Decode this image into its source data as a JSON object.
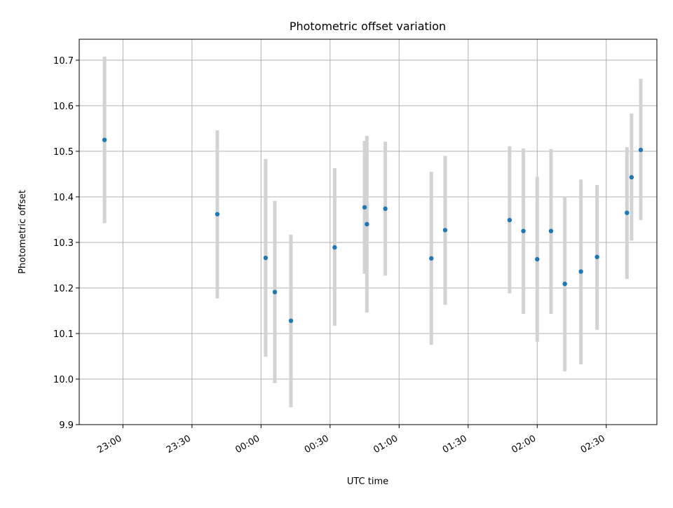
{
  "chart_data": {
    "type": "scatter",
    "title": "Photometric offset variation",
    "xlabel": "UTC time",
    "ylabel": "Photometric offset",
    "ylim": [
      9.9,
      10.746
    ],
    "xlim": [
      "22:41",
      "02:52"
    ],
    "grid": true,
    "x_ticks": [
      "23:00",
      "23:30",
      "00:00",
      "00:30",
      "01:00",
      "01:30",
      "02:00",
      "02:30"
    ],
    "y_ticks": [
      "9.9",
      "10.0",
      "10.1",
      "10.2",
      "10.3",
      "10.4",
      "10.5",
      "10.6",
      "10.7"
    ],
    "series": [
      {
        "marker_color": "#1f77b4",
        "errorbar_color": "#d3d3d3",
        "points": [
          {
            "x": "22:52",
            "y": 10.525,
            "ylow": 10.342,
            "yhigh": 10.708
          },
          {
            "x": "23:41",
            "y": 10.362,
            "ylow": 10.177,
            "yhigh": 10.546
          },
          {
            "x": "00:02",
            "y": 10.266,
            "ylow": 10.049,
            "yhigh": 10.483
          },
          {
            "x": "00:06",
            "y": 10.191,
            "ylow": 9.991,
            "yhigh": 10.391
          },
          {
            "x": "00:13",
            "y": 10.128,
            "ylow": 9.938,
            "yhigh": 10.317
          },
          {
            "x": "00:32",
            "y": 10.289,
            "ylow": 10.117,
            "yhigh": 10.463
          },
          {
            "x": "00:45",
            "y": 10.377,
            "ylow": 10.231,
            "yhigh": 10.523
          },
          {
            "x": "00:46",
            "y": 10.34,
            "ylow": 10.146,
            "yhigh": 10.534
          },
          {
            "x": "00:54",
            "y": 10.374,
            "ylow": 10.227,
            "yhigh": 10.521
          },
          {
            "x": "01:14",
            "y": 10.265,
            "ylow": 10.075,
            "yhigh": 10.455
          },
          {
            "x": "01:20",
            "y": 10.327,
            "ylow": 10.163,
            "yhigh": 10.49
          },
          {
            "x": "01:48",
            "y": 10.349,
            "ylow": 10.188,
            "yhigh": 10.511
          },
          {
            "x": "01:54",
            "y": 10.325,
            "ylow": 10.143,
            "yhigh": 10.506
          },
          {
            "x": "02:00",
            "y": 10.263,
            "ylow": 10.082,
            "yhigh": 10.444
          },
          {
            "x": "02:06",
            "y": 10.325,
            "ylow": 10.143,
            "yhigh": 10.505
          },
          {
            "x": "02:12",
            "y": 10.209,
            "ylow": 10.017,
            "yhigh": 10.401
          },
          {
            "x": "02:19",
            "y": 10.236,
            "ylow": 10.032,
            "yhigh": 10.438
          },
          {
            "x": "02:26",
            "y": 10.268,
            "ylow": 10.108,
            "yhigh": 10.426
          },
          {
            "x": "02:39",
            "y": 10.365,
            "ylow": 10.22,
            "yhigh": 10.509
          },
          {
            "x": "02:41",
            "y": 10.443,
            "ylow": 10.304,
            "yhigh": 10.583
          },
          {
            "x": "02:45",
            "y": 10.503,
            "ylow": 10.349,
            "yhigh": 10.659
          }
        ]
      }
    ]
  }
}
